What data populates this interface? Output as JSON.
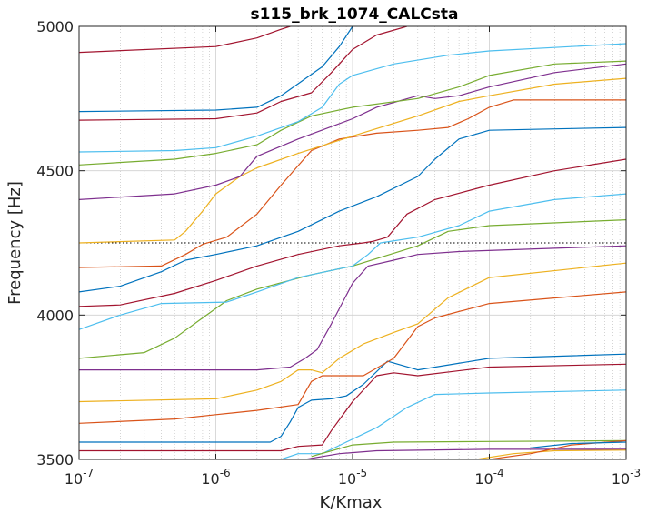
{
  "chart_data": {
    "type": "line",
    "title": "s115_brk_1074_CALCsta",
    "xlabel": "K/Kmax",
    "ylabel": "Frequency [Hz]",
    "xscale": "log",
    "xlim": [
      1e-07,
      0.001
    ],
    "ylim": [
      3500,
      5000
    ],
    "x_ticks": [
      {
        "base": "10",
        "exp": "-7"
      },
      {
        "base": "10",
        "exp": "-6"
      },
      {
        "base": "10",
        "exp": "-5"
      },
      {
        "base": "10",
        "exp": "-4"
      },
      {
        "base": "10",
        "exp": "-3"
      }
    ],
    "y_ticks": [
      "3500",
      "4000",
      "4500",
      "5000"
    ],
    "grid": true,
    "legend": "none",
    "colors": {
      "blue": "#0072BD",
      "orange": "#D95319",
      "yellow": "#EDB120",
      "purple": "#7E2F8E",
      "green": "#77AC30",
      "cyan": "#4DBEEE",
      "red": "#A2142F"
    },
    "reference_line": {
      "y": 4250,
      "style": "dotted",
      "color": "#000000"
    },
    "series": [
      {
        "color": "blue",
        "points": [
          [
            1e-07,
            3560
          ],
          [
            2.5e-06,
            3560
          ],
          [
            3e-06,
            3580
          ],
          [
            3.5e-06,
            3630
          ],
          [
            4e-06,
            3680
          ],
          [
            5e-06,
            3705
          ],
          [
            7e-06,
            3710
          ],
          [
            9e-06,
            3720
          ],
          [
            1.2e-05,
            3760
          ],
          [
            1.8e-05,
            3840
          ],
          [
            3e-05,
            3810
          ],
          [
            0.0001,
            3850
          ],
          [
            0.001,
            3865
          ]
        ]
      },
      {
        "color": "red",
        "points": [
          [
            1e-07,
            3530
          ],
          [
            3e-06,
            3530
          ],
          [
            4e-06,
            3545
          ],
          [
            6e-06,
            3550
          ],
          [
            7e-06,
            3600
          ],
          [
            1e-05,
            3700
          ],
          [
            1.5e-05,
            3790
          ],
          [
            2e-05,
            3800
          ],
          [
            3e-05,
            3790
          ],
          [
            0.0001,
            3820
          ],
          [
            0.001,
            3830
          ]
        ]
      },
      {
        "color": "cyan",
        "points": [
          [
            3e-06,
            3500
          ],
          [
            4e-06,
            3520
          ],
          [
            6e-06,
            3520
          ],
          [
            9e-06,
            3560
          ],
          [
            1.5e-05,
            3610
          ],
          [
            2.5e-05,
            3680
          ],
          [
            4e-05,
            3725
          ],
          [
            0.0001,
            3730
          ],
          [
            0.001,
            3740
          ]
        ]
      },
      {
        "color": "orange",
        "points": [
          [
            1e-07,
            3625
          ],
          [
            5e-07,
            3640
          ],
          [
            1e-06,
            3655
          ],
          [
            2e-06,
            3670
          ],
          [
            4e-06,
            3690
          ],
          [
            5e-06,
            3770
          ],
          [
            6e-06,
            3790
          ],
          [
            8e-06,
            3790
          ],
          [
            1.2e-05,
            3790
          ],
          [
            2e-05,
            3850
          ],
          [
            3e-05,
            3960
          ],
          [
            4e-05,
            3990
          ],
          [
            0.0001,
            4040
          ],
          [
            0.001,
            4080
          ]
        ]
      },
      {
        "color": "yellow",
        "points": [
          [
            1e-07,
            3700
          ],
          [
            1e-06,
            3710
          ],
          [
            2e-06,
            3740
          ],
          [
            3e-06,
            3770
          ],
          [
            4e-06,
            3810
          ],
          [
            5e-06,
            3810
          ],
          [
            6e-06,
            3800
          ],
          [
            8e-06,
            3850
          ],
          [
            1.2e-05,
            3900
          ],
          [
            2e-05,
            3940
          ],
          [
            3e-05,
            3970
          ],
          [
            5e-05,
            4060
          ],
          [
            0.0001,
            4130
          ],
          [
            0.001,
            4180
          ]
        ]
      },
      {
        "color": "purple",
        "points": [
          [
            1e-07,
            3810
          ],
          [
            2e-06,
            3810
          ],
          [
            3.5e-06,
            3820
          ],
          [
            4.5e-06,
            3850
          ],
          [
            5.5e-06,
            3880
          ],
          [
            7e-06,
            3970
          ],
          [
            1e-05,
            4110
          ],
          [
            1.3e-05,
            4170
          ],
          [
            2e-05,
            4190
          ],
          [
            3e-05,
            4210
          ],
          [
            6e-05,
            4220
          ],
          [
            0.001,
            4240
          ]
        ]
      },
      {
        "color": "green",
        "points": [
          [
            1e-07,
            3850
          ],
          [
            3e-07,
            3870
          ],
          [
            5e-07,
            3920
          ],
          [
            8e-07,
            3990
          ],
          [
            1.2e-06,
            4050
          ],
          [
            2e-06,
            4090
          ],
          [
            5e-06,
            4140
          ],
          [
            1e-05,
            4170
          ],
          [
            3e-05,
            4240
          ],
          [
            5e-05,
            4290
          ],
          [
            0.0001,
            4310
          ],
          [
            0.001,
            4330
          ]
        ]
      },
      {
        "color": "cyan",
        "points": [
          [
            1e-07,
            3950
          ],
          [
            2e-07,
            4000
          ],
          [
            4e-07,
            4040
          ],
          [
            1.2e-06,
            4045
          ],
          [
            2e-06,
            4080
          ],
          [
            4e-06,
            4130
          ],
          [
            1e-05,
            4170
          ],
          [
            1.3e-05,
            4210
          ],
          [
            1.6e-05,
            4250
          ],
          [
            3e-05,
            4270
          ],
          [
            6e-05,
            4310
          ],
          [
            0.0001,
            4360
          ],
          [
            0.0003,
            4400
          ],
          [
            0.001,
            4420
          ]
        ]
      },
      {
        "color": "red",
        "points": [
          [
            1e-07,
            4030
          ],
          [
            2e-07,
            4035
          ],
          [
            5e-07,
            4075
          ],
          [
            1e-06,
            4120
          ],
          [
            2e-06,
            4170
          ],
          [
            4e-06,
            4210
          ],
          [
            8e-06,
            4240
          ],
          [
            1.2e-05,
            4250
          ],
          [
            1.4e-05,
            4255
          ],
          [
            1.8e-05,
            4270
          ],
          [
            2.5e-05,
            4350
          ],
          [
            4e-05,
            4400
          ],
          [
            0.0001,
            4450
          ],
          [
            0.0003,
            4500
          ],
          [
            0.001,
            4540
          ]
        ]
      },
      {
        "color": "blue",
        "points": [
          [
            1e-07,
            4080
          ],
          [
            2e-07,
            4100
          ],
          [
            4e-07,
            4150
          ],
          [
            6e-07,
            4190
          ],
          [
            1e-06,
            4210
          ],
          [
            2e-06,
            4240
          ],
          [
            4e-06,
            4290
          ],
          [
            8e-06,
            4360
          ],
          [
            1.5e-05,
            4410
          ],
          [
            3e-05,
            4480
          ],
          [
            4e-05,
            4540
          ],
          [
            6e-05,
            4610
          ],
          [
            0.0001,
            4640
          ],
          [
            0.001,
            4650
          ]
        ]
      },
      {
        "color": "orange",
        "points": [
          [
            1e-07,
            4165
          ],
          [
            4e-07,
            4170
          ],
          [
            6e-07,
            4210
          ],
          [
            8e-07,
            4245
          ],
          [
            1.2e-06,
            4270
          ],
          [
            2e-06,
            4350
          ],
          [
            3e-06,
            4450
          ],
          [
            5e-06,
            4570
          ],
          [
            8e-06,
            4610
          ],
          [
            1.5e-05,
            4630
          ],
          [
            3e-05,
            4640
          ],
          [
            5e-05,
            4650
          ],
          [
            7e-05,
            4680
          ],
          [
            0.0001,
            4720
          ],
          [
            0.00015,
            4745
          ],
          [
            0.001,
            4745
          ]
        ]
      },
      {
        "color": "yellow",
        "points": [
          [
            1e-07,
            4250
          ],
          [
            5e-07,
            4260
          ],
          [
            6e-07,
            4290
          ],
          [
            8e-07,
            4360
          ],
          [
            1e-06,
            4420
          ],
          [
            1.5e-06,
            4480
          ],
          [
            2e-06,
            4510
          ],
          [
            4e-06,
            4560
          ],
          [
            1e-05,
            4620
          ],
          [
            3e-05,
            4690
          ],
          [
            6e-05,
            4740
          ],
          [
            0.0001,
            4760
          ],
          [
            0.0003,
            4800
          ],
          [
            0.001,
            4820
          ]
        ]
      },
      {
        "color": "purple",
        "points": [
          [
            1e-07,
            4400
          ],
          [
            5e-07,
            4420
          ],
          [
            1e-06,
            4450
          ],
          [
            1.5e-06,
            4480
          ],
          [
            2e-06,
            4550
          ],
          [
            4e-06,
            4610
          ],
          [
            1e-05,
            4680
          ],
          [
            1.5e-05,
            4720
          ],
          [
            3e-05,
            4760
          ],
          [
            4e-05,
            4750
          ],
          [
            6e-05,
            4760
          ],
          [
            0.0001,
            4790
          ],
          [
            0.0003,
            4840
          ],
          [
            0.001,
            4870
          ]
        ]
      },
      {
        "color": "green",
        "points": [
          [
            1e-07,
            4520
          ],
          [
            5e-07,
            4540
          ],
          [
            1e-06,
            4560
          ],
          [
            2e-06,
            4590
          ],
          [
            3e-06,
            4640
          ],
          [
            5e-06,
            4690
          ],
          [
            1e-05,
            4720
          ],
          [
            3e-05,
            4750
          ],
          [
            6e-05,
            4790
          ],
          [
            0.0001,
            4830
          ],
          [
            0.0003,
            4870
          ],
          [
            0.001,
            4880
          ]
        ]
      },
      {
        "color": "cyan",
        "points": [
          [
            1e-07,
            4565
          ],
          [
            5e-07,
            4570
          ],
          [
            1e-06,
            4580
          ],
          [
            2e-06,
            4620
          ],
          [
            4e-06,
            4670
          ],
          [
            6e-06,
            4720
          ],
          [
            8e-06,
            4800
          ],
          [
            1e-05,
            4830
          ],
          [
            2e-05,
            4870
          ],
          [
            5e-05,
            4900
          ],
          [
            0.0001,
            4915
          ],
          [
            0.001,
            4940
          ]
        ]
      },
      {
        "color": "red",
        "points": [
          [
            1e-07,
            4675
          ],
          [
            1e-06,
            4680
          ],
          [
            2e-06,
            4700
          ],
          [
            3e-06,
            4740
          ],
          [
            5e-06,
            4770
          ],
          [
            7e-06,
            4840
          ],
          [
            1e-05,
            4920
          ],
          [
            1.5e-05,
            4970
          ],
          [
            2.5e-05,
            5000
          ]
        ]
      },
      {
        "color": "blue",
        "points": [
          [
            1e-07,
            4705
          ],
          [
            1e-06,
            4710
          ],
          [
            2e-06,
            4720
          ],
          [
            3e-06,
            4760
          ],
          [
            6e-06,
            4860
          ],
          [
            8e-06,
            4930
          ],
          [
            1e-05,
            5000
          ]
        ]
      },
      {
        "color": "red",
        "points": [
          [
            1e-07,
            4910
          ],
          [
            1e-06,
            4930
          ],
          [
            2e-06,
            4960
          ],
          [
            3e-06,
            4990
          ],
          [
            3.5e-06,
            5000
          ]
        ]
      },
      {
        "color": "purple",
        "points": [
          [
            4.5e-06,
            3500
          ],
          [
            8e-06,
            3520
          ],
          [
            1.5e-05,
            3530
          ],
          [
            0.0001,
            3535
          ],
          [
            0.001,
            3535
          ]
        ]
      },
      {
        "color": "green",
        "points": [
          [
            5e-06,
            3510
          ],
          [
            1e-05,
            3550
          ],
          [
            2e-05,
            3560
          ],
          [
            0.0001,
            3562
          ],
          [
            0.001,
            3565
          ]
        ]
      },
      {
        "color": "yellow",
        "points": [
          [
            8e-05,
            3500
          ],
          [
            0.00015,
            3520
          ],
          [
            0.0003,
            3530
          ],
          [
            0.001,
            3532
          ]
        ]
      },
      {
        "color": "orange",
        "points": [
          [
            0.0001,
            3500
          ],
          [
            0.0002,
            3520
          ],
          [
            0.0004,
            3550
          ],
          [
            0.001,
            3565
          ]
        ]
      },
      {
        "color": "blue",
        "points": [
          [
            0.0002,
            3540
          ],
          [
            0.0004,
            3555
          ],
          [
            0.001,
            3560
          ]
        ]
      }
    ]
  }
}
